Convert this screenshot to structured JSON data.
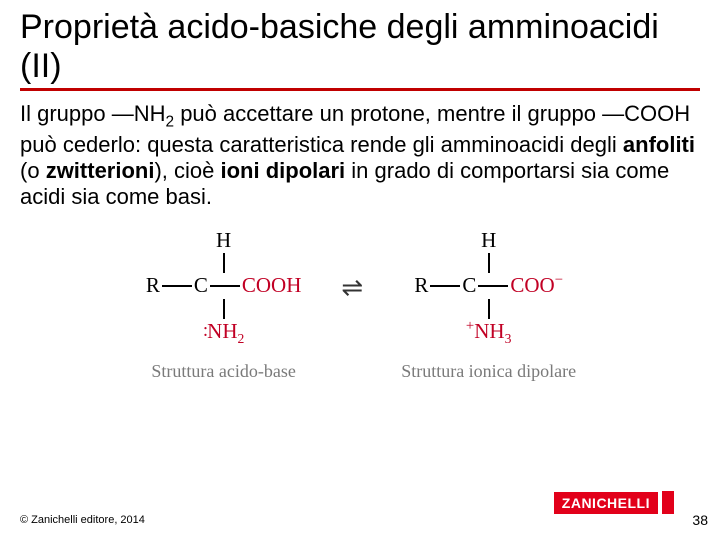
{
  "title": "Proprietà acido-basiche degli amminoacidi (II)",
  "body": {
    "pre1": "Il gruppo —NH",
    "sub1": "2",
    "mid1": " può accettare un protone, mentre il gruppo —COOH può cederlo: questa caratteristica rende gli amminoacidi degli ",
    "bold1": "anfoliti",
    "mid2": " (o ",
    "bold2": "zwitterioni",
    "mid3": "), cioè ",
    "bold3": "ioni dipolari",
    "post": " in grado di comportarsi sia come acidi sia come basi."
  },
  "diagram": {
    "left": {
      "H": "H",
      "R": "R",
      "C": "C",
      "COOH": "COOH",
      "NH2_pre": ":",
      "NH2": "NH",
      "NH2_sub": "2",
      "caption": "Struttura acido-base"
    },
    "arrow": "⇌",
    "right": {
      "H": "H",
      "R": "R",
      "C": "C",
      "COO": "COO",
      "COO_charge": "−",
      "NH3_charge": "+",
      "NH3": "NH",
      "NH3_sub": "3",
      "caption": "Struttura ionica dipolare"
    },
    "colors": {
      "red": "#c10024",
      "caption_gray": "#7a7a7a",
      "rule_red": "#c00000",
      "logo_red": "#e2001a"
    },
    "font": {
      "title_pt": 34,
      "body_pt": 22,
      "mol_pt": 21,
      "caption_pt": 18
    }
  },
  "footer": {
    "copyright": "© Zanichelli editore, 2014",
    "logo": "ZANICHELLI",
    "page": "38"
  }
}
